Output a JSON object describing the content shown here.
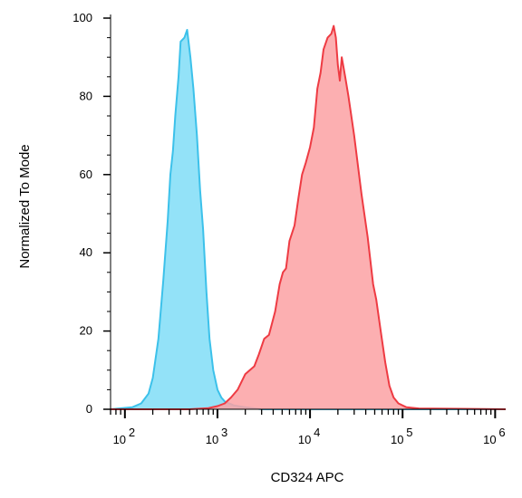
{
  "chart_data": {
    "type": "area",
    "title": "",
    "xlabel": "CD324 APC",
    "ylabel": "Normalized To Mode",
    "xscale": "log",
    "xlim": [
      70,
      1300000
    ],
    "ylim": [
      0,
      100
    ],
    "grid": false,
    "legend": "none",
    "y_ticks": [
      {
        "value": 0,
        "label": "0"
      },
      {
        "value": 20,
        "label": "20"
      },
      {
        "value": 40,
        "label": "40"
      },
      {
        "value": 60,
        "label": "60"
      },
      {
        "value": 80,
        "label": "80"
      },
      {
        "value": 100,
        "label": "100"
      }
    ],
    "x_ticks": [
      {
        "value": 100,
        "base": "10",
        "exp": "2"
      },
      {
        "value": 1000,
        "base": "10",
        "exp": "3"
      },
      {
        "value": 10000,
        "base": "10",
        "exp": "4"
      },
      {
        "value": 100000,
        "base": "10",
        "exp": "5"
      },
      {
        "value": 1000000,
        "base": "10",
        "exp": "6"
      }
    ],
    "series": [
      {
        "color": "#3cc1ea",
        "fill": "#93e2f8",
        "points": [
          [
            70,
            0
          ],
          [
            120,
            0.5
          ],
          [
            150,
            1.5
          ],
          [
            180,
            4
          ],
          [
            200,
            8
          ],
          [
            230,
            18
          ],
          [
            260,
            33
          ],
          [
            290,
            48
          ],
          [
            310,
            60
          ],
          [
            330,
            66
          ],
          [
            350,
            75
          ],
          [
            380,
            85
          ],
          [
            400,
            94
          ],
          [
            440,
            95
          ],
          [
            470,
            97
          ],
          [
            510,
            90
          ],
          [
            550,
            82
          ],
          [
            600,
            70
          ],
          [
            650,
            56
          ],
          [
            700,
            46
          ],
          [
            760,
            30
          ],
          [
            820,
            18
          ],
          [
            900,
            10
          ],
          [
            1000,
            5
          ],
          [
            1100,
            3
          ],
          [
            1200,
            2
          ],
          [
            1500,
            1
          ],
          [
            2000,
            0.5
          ],
          [
            3000,
            0
          ],
          [
            1300000,
            0
          ]
        ]
      },
      {
        "color": "#ee3b43",
        "fill": "#fca1a3",
        "points": [
          [
            70,
            0
          ],
          [
            500,
            0
          ],
          [
            800,
            0.3
          ],
          [
            1000,
            0.8
          ],
          [
            1200,
            1.5
          ],
          [
            1400,
            3
          ],
          [
            1650,
            5
          ],
          [
            2000,
            9
          ],
          [
            2500,
            11
          ],
          [
            2800,
            14
          ],
          [
            3200,
            18
          ],
          [
            3600,
            19
          ],
          [
            4200,
            25
          ],
          [
            4700,
            32
          ],
          [
            5100,
            35
          ],
          [
            5500,
            36
          ],
          [
            6000,
            43
          ],
          [
            6800,
            47
          ],
          [
            7500,
            54
          ],
          [
            8200,
            60
          ],
          [
            9000,
            63
          ],
          [
            10000,
            67
          ],
          [
            11000,
            72
          ],
          [
            12000,
            82
          ],
          [
            13000,
            86
          ],
          [
            14000,
            92
          ],
          [
            15500,
            95
          ],
          [
            17000,
            96
          ],
          [
            18000,
            98
          ],
          [
            19000,
            95
          ],
          [
            20000,
            88
          ],
          [
            21000,
            84
          ],
          [
            22000,
            90
          ],
          [
            24000,
            85
          ],
          [
            26000,
            80
          ],
          [
            30000,
            70
          ],
          [
            36000,
            55
          ],
          [
            42000,
            44
          ],
          [
            48000,
            32
          ],
          [
            52000,
            28
          ],
          [
            58000,
            20
          ],
          [
            65000,
            12
          ],
          [
            72000,
            6
          ],
          [
            80000,
            3
          ],
          [
            90000,
            1.5
          ],
          [
            110000,
            0.5
          ],
          [
            150000,
            0.2
          ],
          [
            1300000,
            0
          ]
        ]
      }
    ]
  }
}
